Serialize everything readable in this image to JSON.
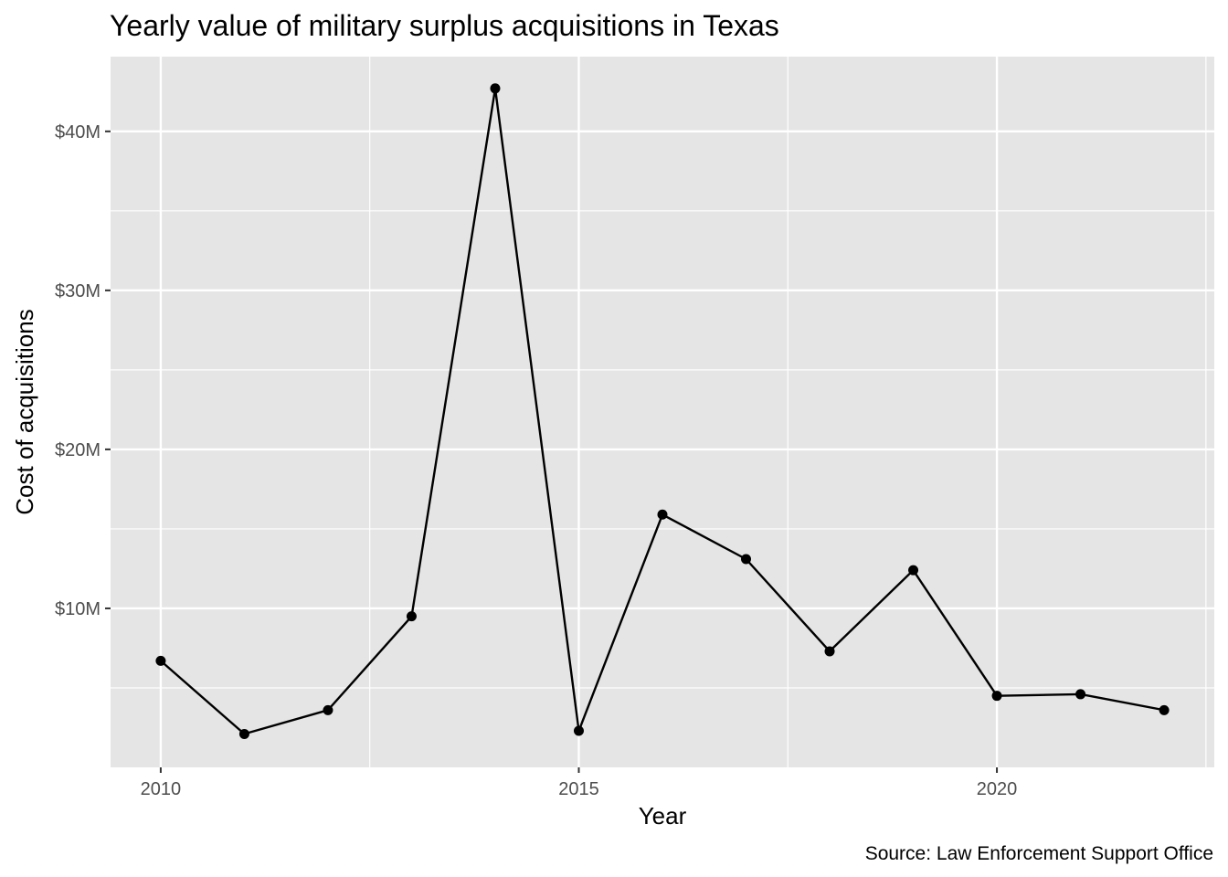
{
  "chart_data": {
    "type": "line",
    "title": "Yearly value of military surplus acquisitions in Texas",
    "xlabel": "Year",
    "ylabel": "Cost of acquisitions",
    "caption": "Source: Law Enforcement Support Office",
    "x": [
      2010,
      2011,
      2012,
      2013,
      2014,
      2015,
      2016,
      2017,
      2018,
      2019,
      2020,
      2021,
      2022
    ],
    "values": [
      6.7,
      2.1,
      3.6,
      9.5,
      42.7,
      2.3,
      15.9,
      13.1,
      7.3,
      12.4,
      4.5,
      4.6,
      3.6
    ],
    "unit": "millions of dollars",
    "xlim": [
      2009.4,
      2022.6
    ],
    "ylim": [
      0.0,
      44.7
    ],
    "x_ticks": [
      {
        "value": 2010,
        "label": "2010"
      },
      {
        "value": 2015,
        "label": "2015"
      },
      {
        "value": 2020,
        "label": "2020"
      }
    ],
    "x_minor_ticks": [
      2012.5,
      2017.5,
      2022.5
    ],
    "y_ticks": [
      {
        "value": 10,
        "label": "$10M"
      },
      {
        "value": 20,
        "label": "$20M"
      },
      {
        "value": 30,
        "label": "$30M"
      },
      {
        "value": 40,
        "label": "$40M"
      }
    ],
    "y_minor_ticks": [
      5,
      15,
      25,
      35
    ],
    "grid": true,
    "legend": "none",
    "colors": {
      "panel": "#e5e5e5",
      "grid": "#ffffff",
      "line": "#000000",
      "point": "#000000",
      "tick": "#333333",
      "tick_label": "#4d4d4d"
    }
  }
}
